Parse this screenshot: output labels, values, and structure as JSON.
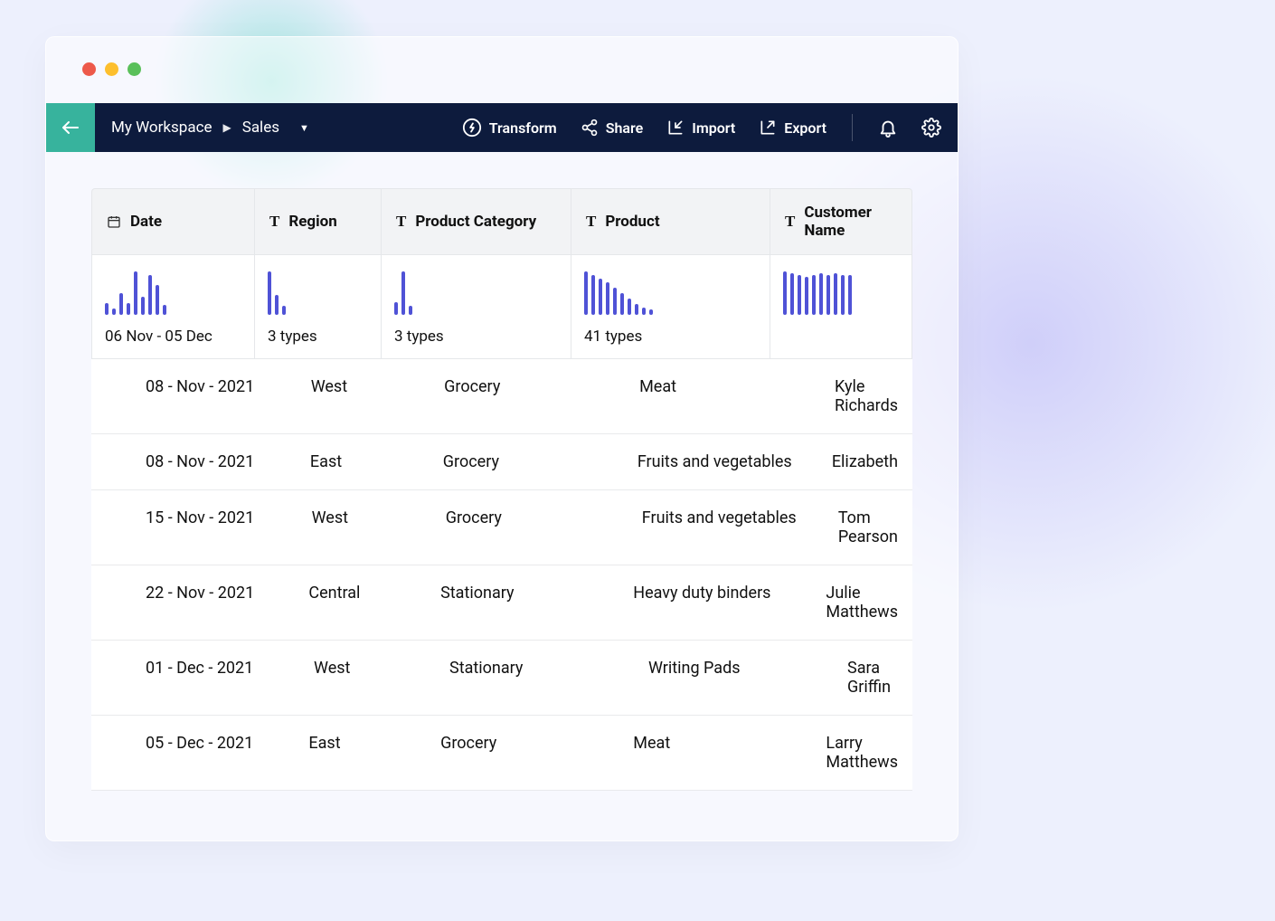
{
  "colors": {
    "page_bg": "#edf0fd",
    "toolbar_bg": "#0d1b3d",
    "back_btn_bg": "#37b39d",
    "bar_color": "#4f52d6",
    "header_bg": "#f2f3f5",
    "border": "#e5e7ea",
    "text": "#111111",
    "tl_red": "#ed594a",
    "tl_yellow": "#fdbf2d",
    "tl_green": "#5ac05a"
  },
  "breadcrumb": {
    "workspace": "My Workspace",
    "item": "Sales"
  },
  "toolbar": {
    "transform": "Transform",
    "share": "Share",
    "import": "Import",
    "export": "Export"
  },
  "columns": {
    "date": {
      "label": "Date",
      "icon": "calendar"
    },
    "region": {
      "label": "Region",
      "icon": "text"
    },
    "category": {
      "label": "Product Category",
      "icon": "text"
    },
    "product": {
      "label": "Product",
      "icon": "text"
    },
    "customer": {
      "label": "Customer Name",
      "icon": "text"
    }
  },
  "summaries": {
    "date": {
      "label": "06 Nov - 05 Dec",
      "spark": [
        12,
        6,
        22,
        12,
        44,
        18,
        40,
        30,
        10
      ]
    },
    "region": {
      "label": "3 types",
      "spark": [
        40,
        18,
        8
      ]
    },
    "category": {
      "label": "3 types",
      "spark": [
        12,
        40,
        8
      ]
    },
    "product": {
      "label": "41 types",
      "spark": [
        48,
        44,
        40,
        36,
        30,
        24,
        18,
        12,
        8,
        6
      ]
    },
    "customer": {
      "label": "",
      "spark": [
        46,
        44,
        42,
        40,
        42,
        44,
        42,
        44,
        42,
        42
      ]
    }
  },
  "rows": [
    {
      "date": "08 - Nov - 2021",
      "region": "West",
      "category": "Grocery",
      "product": "Meat",
      "customer": "Kyle Richards"
    },
    {
      "date": "08 - Nov - 2021",
      "region": "East",
      "category": "Grocery",
      "product": "Fruits and vegetables",
      "customer": "Elizabeth"
    },
    {
      "date": "15 - Nov - 2021",
      "region": "West",
      "category": "Grocery",
      "product": "Fruits and vegetables",
      "customer": "Tom Pearson"
    },
    {
      "date": "22 - Nov - 2021",
      "region": "Central",
      "category": "Stationary",
      "product": "Heavy duty binders",
      "customer": "Julie Matthews"
    },
    {
      "date": "01 - Dec - 2021",
      "region": "West",
      "category": "Stationary",
      "product": "Writing Pads",
      "customer": "Sara Griffin"
    },
    {
      "date": "05 - Dec - 2021",
      "region": "East",
      "category": "Grocery",
      "product": "Meat",
      "customer": "Larry Matthews"
    }
  ]
}
